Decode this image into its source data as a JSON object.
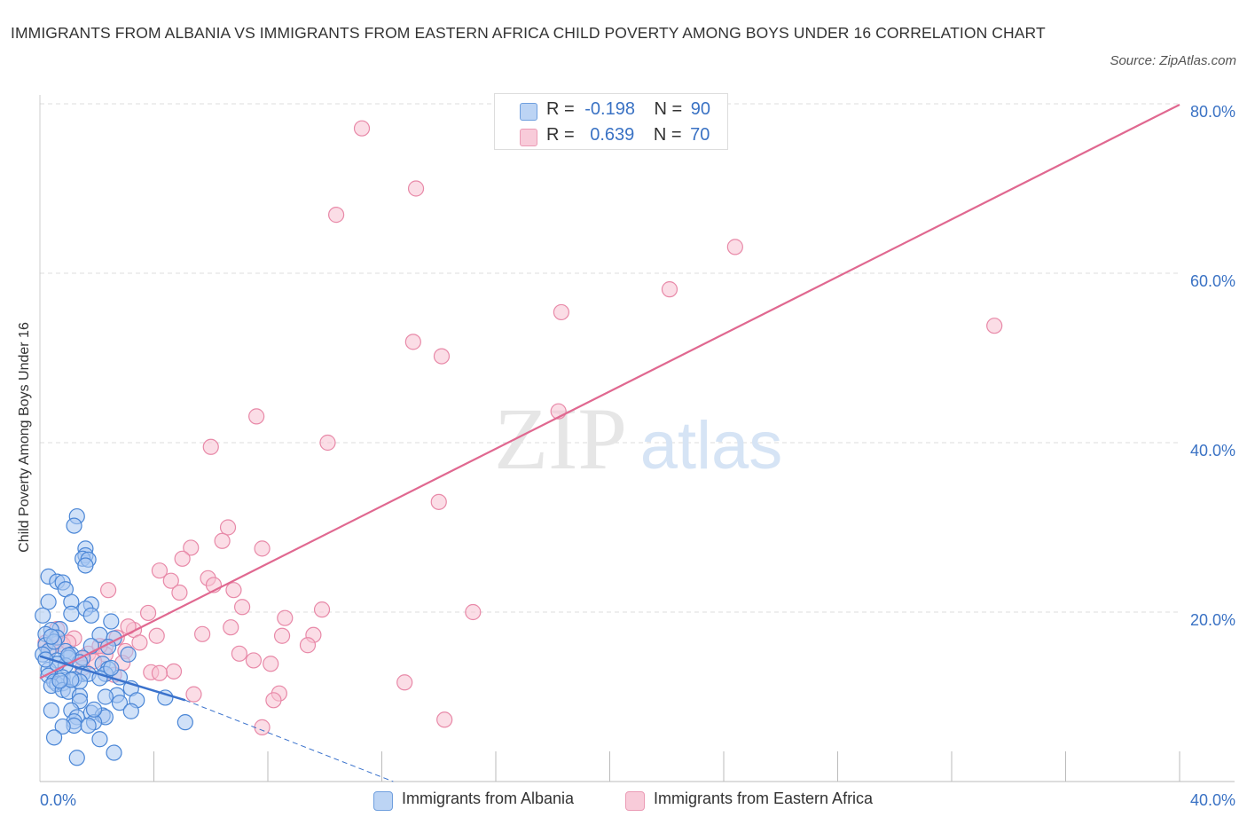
{
  "title": "IMMIGRANTS FROM ALBANIA VS IMMIGRANTS FROM EASTERN AFRICA CHILD POVERTY AMONG BOYS UNDER 16 CORRELATION CHART",
  "source": "Source: ZipAtlas.com",
  "watermark": {
    "zip": "ZIP",
    "atlas": "atlas"
  },
  "legend": {
    "r_label": "R =",
    "n_label": "N =",
    "albania": {
      "r": "-0.198",
      "n": "90"
    },
    "eastern_africa": {
      "r": "0.639",
      "n": "70"
    }
  },
  "bottom_legend": {
    "albania": "Immigrants from Albania",
    "eastern_africa": "Immigrants from Eastern Africa"
  },
  "colors": {
    "albania_fill": "#a9c8f2",
    "albania_stroke": "#4a86d6",
    "albania_line": "#3a72cc",
    "eastern_africa_fill": "#f7c1d2",
    "eastern_africa_stroke": "#e889a8",
    "eastern_africa_line": "#e06890",
    "axis_label": "#3a72c4",
    "grid": "#dddddd"
  },
  "chart_data": {
    "type": "scatter",
    "title": "IMMIGRANTS FROM ALBANIA VS IMMIGRANTS FROM EASTERN AFRICA CHILD POVERTY AMONG BOYS UNDER 16 CORRELATION CHART",
    "xlabel": "",
    "ylabel": "Child Poverty Among Boys Under 16",
    "xlim": [
      0,
      40
    ],
    "ylim": [
      0,
      80
    ],
    "x_ticks": [
      0,
      4,
      8,
      12,
      16,
      20,
      24,
      28,
      32,
      36,
      40
    ],
    "x_tick_labels": [
      "0.0%",
      "40.0%"
    ],
    "y_ticks": [
      20,
      40,
      60,
      80
    ],
    "y_tick_labels": [
      "20.0%",
      "40.0%",
      "60.0%",
      "80.0%"
    ],
    "grid": true,
    "legend_position": "top-center",
    "series": [
      {
        "name": "Immigrants from Albania",
        "color": "#4a86d6",
        "points": [
          [
            1.3,
            31.3
          ],
          [
            1.2,
            30.2
          ],
          [
            1.6,
            27.5
          ],
          [
            1.6,
            26.7
          ],
          [
            1.5,
            26.3
          ],
          [
            1.7,
            26.2
          ],
          [
            1.6,
            25.5
          ],
          [
            0.3,
            24.2
          ],
          [
            0.6,
            23.6
          ],
          [
            0.8,
            23.5
          ],
          [
            0.9,
            22.7
          ],
          [
            1.1,
            21.2
          ],
          [
            0.3,
            21.2
          ],
          [
            1.8,
            20.9
          ],
          [
            1.6,
            20.4
          ],
          [
            1.1,
            19.8
          ],
          [
            1.8,
            19.6
          ],
          [
            0.1,
            19.6
          ],
          [
            2.5,
            18.9
          ],
          [
            0.7,
            18.0
          ],
          [
            0.4,
            17.9
          ],
          [
            2.1,
            17.3
          ],
          [
            0.2,
            17.4
          ],
          [
            0.6,
            17.0
          ],
          [
            2.6,
            16.9
          ],
          [
            0.2,
            16.1
          ],
          [
            1.8,
            16.0
          ],
          [
            2.4,
            15.9
          ],
          [
            0.9,
            15.4
          ],
          [
            0.3,
            15.4
          ],
          [
            1.1,
            15.0
          ],
          [
            3.1,
            15.0
          ],
          [
            0.1,
            15.0
          ],
          [
            1.0,
            14.6
          ],
          [
            1.5,
            14.6
          ],
          [
            0.6,
            14.3
          ],
          [
            1.4,
            14.1
          ],
          [
            2.2,
            13.9
          ],
          [
            0.9,
            13.7
          ],
          [
            2.4,
            13.3
          ],
          [
            0.3,
            13.2
          ],
          [
            1.5,
            12.7
          ],
          [
            1.7,
            12.7
          ],
          [
            2.3,
            12.7
          ],
          [
            0.3,
            12.5
          ],
          [
            0.8,
            12.3
          ],
          [
            1.2,
            12.1
          ],
          [
            2.1,
            12.2
          ],
          [
            0.5,
            11.8
          ],
          [
            1.4,
            11.8
          ],
          [
            0.6,
            11.5
          ],
          [
            2.8,
            12.3
          ],
          [
            0.8,
            11.6
          ],
          [
            0.4,
            11.3
          ],
          [
            0.8,
            10.8
          ],
          [
            1.0,
            10.6
          ],
          [
            3.2,
            11.0
          ],
          [
            2.7,
            10.2
          ],
          [
            1.4,
            10.1
          ],
          [
            2.3,
            10.0
          ],
          [
            1.4,
            9.5
          ],
          [
            3.4,
            9.6
          ],
          [
            2.8,
            9.3
          ],
          [
            4.4,
            9.9
          ],
          [
            1.1,
            8.4
          ],
          [
            0.4,
            8.4
          ],
          [
            3.2,
            8.3
          ],
          [
            1.8,
            8.1
          ],
          [
            2.2,
            7.8
          ],
          [
            2.3,
            7.6
          ],
          [
            1.3,
            7.6
          ],
          [
            1.2,
            7.1
          ],
          [
            1.9,
            7.0
          ],
          [
            5.1,
            7.0
          ],
          [
            1.2,
            6.6
          ],
          [
            0.8,
            6.5
          ],
          [
            1.7,
            6.6
          ],
          [
            0.5,
            5.2
          ],
          [
            2.1,
            5.0
          ],
          [
            2.6,
            3.4
          ],
          [
            1.3,
            2.8
          ],
          [
            0.6,
            13.9
          ],
          [
            1.0,
            14.9
          ],
          [
            0.2,
            14.4
          ],
          [
            0.5,
            16.5
          ],
          [
            1.1,
            12.0
          ],
          [
            0.7,
            11.9
          ],
          [
            1.9,
            8.5
          ],
          [
            0.4,
            17.1
          ],
          [
            2.5,
            13.4
          ]
        ]
      },
      {
        "name": "Immigrants from Eastern Africa",
        "color": "#e889a8",
        "points": [
          [
            11.3,
            77.1
          ],
          [
            13.2,
            70.0
          ],
          [
            10.4,
            66.9
          ],
          [
            24.4,
            63.1
          ],
          [
            22.1,
            58.1
          ],
          [
            18.3,
            55.4
          ],
          [
            33.5,
            53.8
          ],
          [
            13.1,
            51.9
          ],
          [
            14.1,
            50.2
          ],
          [
            18.2,
            43.7
          ],
          [
            7.6,
            43.1
          ],
          [
            10.1,
            40.0
          ],
          [
            6.0,
            39.5
          ],
          [
            14.0,
            33.0
          ],
          [
            6.6,
            30.0
          ],
          [
            6.4,
            28.4
          ],
          [
            7.8,
            27.5
          ],
          [
            5.3,
            27.6
          ],
          [
            5.0,
            26.3
          ],
          [
            4.2,
            24.9
          ],
          [
            5.9,
            24.0
          ],
          [
            4.6,
            23.7
          ],
          [
            6.1,
            23.2
          ],
          [
            2.4,
            22.6
          ],
          [
            6.8,
            22.6
          ],
          [
            4.9,
            22.3
          ],
          [
            7.1,
            20.6
          ],
          [
            9.9,
            20.3
          ],
          [
            15.2,
            20.0
          ],
          [
            3.8,
            19.9
          ],
          [
            8.6,
            19.3
          ],
          [
            6.7,
            18.2
          ],
          [
            3.3,
            17.9
          ],
          [
            4.1,
            17.2
          ],
          [
            5.7,
            17.4
          ],
          [
            9.6,
            17.3
          ],
          [
            8.5,
            17.2
          ],
          [
            1.2,
            16.9
          ],
          [
            2.7,
            17.0
          ],
          [
            3.5,
            16.4
          ],
          [
            0.6,
            16.5
          ],
          [
            9.4,
            16.1
          ],
          [
            2.3,
            15.9
          ],
          [
            0.8,
            16.2
          ],
          [
            1.7,
            15.1
          ],
          [
            2.3,
            15.0
          ],
          [
            3.0,
            15.4
          ],
          [
            1.5,
            14.5
          ],
          [
            7.0,
            15.1
          ],
          [
            7.5,
            14.3
          ],
          [
            2.9,
            14.0
          ],
          [
            8.1,
            13.9
          ],
          [
            4.7,
            13.0
          ],
          [
            1.5,
            13.4
          ],
          [
            0.2,
            16.4
          ],
          [
            3.9,
            12.9
          ],
          [
            4.2,
            12.8
          ],
          [
            2.6,
            12.6
          ],
          [
            12.8,
            11.7
          ],
          [
            8.4,
            10.4
          ],
          [
            5.4,
            10.3
          ],
          [
            8.2,
            9.6
          ],
          [
            14.2,
            7.3
          ],
          [
            7.8,
            6.4
          ],
          [
            0.6,
            18.0
          ],
          [
            1.0,
            16.4
          ],
          [
            0.4,
            15.8
          ],
          [
            1.9,
            14.2
          ],
          [
            3.1,
            18.3
          ],
          [
            2.1,
            16.0
          ]
        ]
      }
    ],
    "trendlines": [
      {
        "series": "Immigrants from Albania",
        "x": [
          0,
          5.1
        ],
        "y": [
          14.8,
          9.6
        ],
        "dashed_extension": {
          "x": [
            5.1,
            12.4
          ],
          "y": [
            9.6,
            0
          ]
        }
      },
      {
        "series": "Immigrants from Eastern Africa",
        "x": [
          0,
          40
        ],
        "y": [
          12.2,
          79.9
        ]
      }
    ]
  }
}
